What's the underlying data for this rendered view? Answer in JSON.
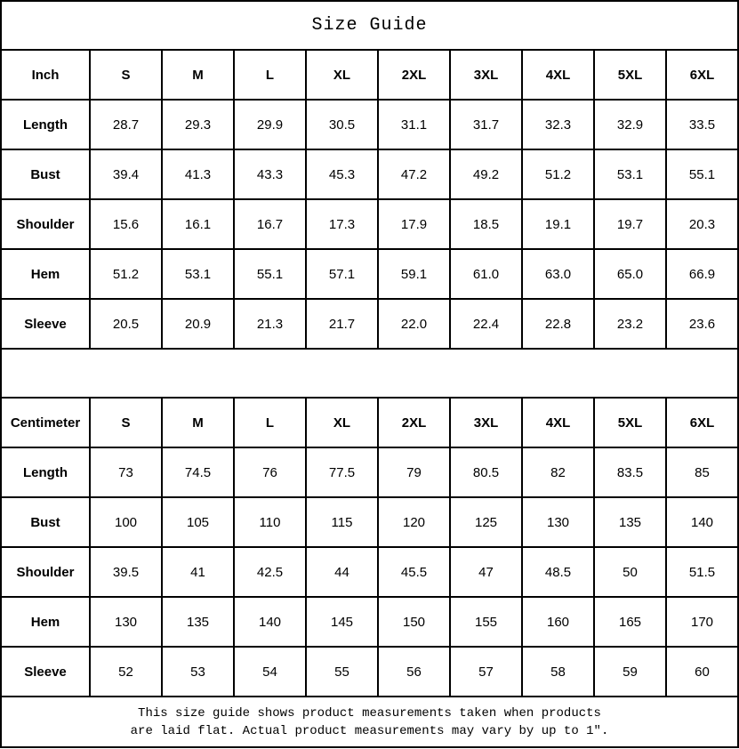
{
  "title": "Size Guide",
  "colors": {
    "border": "#000000",
    "background": "#ffffff",
    "text": "#000000"
  },
  "footer": {
    "line1": "This size guide shows product measurements taken when products",
    "line2": "are laid flat. Actual product measurements may vary by up to 1″."
  },
  "tables": [
    {
      "name": "inch",
      "unit_label": "Inch",
      "size_headers": [
        "S",
        "M",
        "L",
        "XL",
        "2XL",
        "3XL",
        "4XL",
        "5XL",
        "6XL"
      ],
      "rows": [
        {
          "label": "Length",
          "values": [
            "28.7",
            "29.3",
            "29.9",
            "30.5",
            "31.1",
            "31.7",
            "32.3",
            "32.9",
            "33.5"
          ]
        },
        {
          "label": "Bust",
          "values": [
            "39.4",
            "41.3",
            "43.3",
            "45.3",
            "47.2",
            "49.2",
            "51.2",
            "53.1",
            "55.1"
          ]
        },
        {
          "label": "Shoulder",
          "values": [
            "15.6",
            "16.1",
            "16.7",
            "17.3",
            "17.9",
            "18.5",
            "19.1",
            "19.7",
            "20.3"
          ]
        },
        {
          "label": "Hem",
          "values": [
            "51.2",
            "53.1",
            "55.1",
            "57.1",
            "59.1",
            "61.0",
            "63.0",
            "65.0",
            "66.9"
          ]
        },
        {
          "label": "Sleeve",
          "values": [
            "20.5",
            "20.9",
            "21.3",
            "21.7",
            "22.0",
            "22.4",
            "22.8",
            "23.2",
            "23.6"
          ]
        }
      ]
    },
    {
      "name": "centimeter",
      "unit_label": "Centimeter",
      "size_headers": [
        "S",
        "M",
        "L",
        "XL",
        "2XL",
        "3XL",
        "4XL",
        "5XL",
        "6XL"
      ],
      "rows": [
        {
          "label": "Length",
          "values": [
            "73",
            "74.5",
            "76",
            "77.5",
            "79",
            "80.5",
            "82",
            "83.5",
            "85"
          ]
        },
        {
          "label": "Bust",
          "values": [
            "100",
            "105",
            "110",
            "115",
            "120",
            "125",
            "130",
            "135",
            "140"
          ]
        },
        {
          "label": "Shoulder",
          "values": [
            "39.5",
            "41",
            "42.5",
            "44",
            "45.5",
            "47",
            "48.5",
            "50",
            "51.5"
          ]
        },
        {
          "label": "Hem",
          "values": [
            "130",
            "135",
            "140",
            "145",
            "150",
            "155",
            "160",
            "165",
            "170"
          ]
        },
        {
          "label": "Sleeve",
          "values": [
            "52",
            "53",
            "54",
            "55",
            "56",
            "57",
            "58",
            "59",
            "60"
          ]
        }
      ]
    }
  ]
}
